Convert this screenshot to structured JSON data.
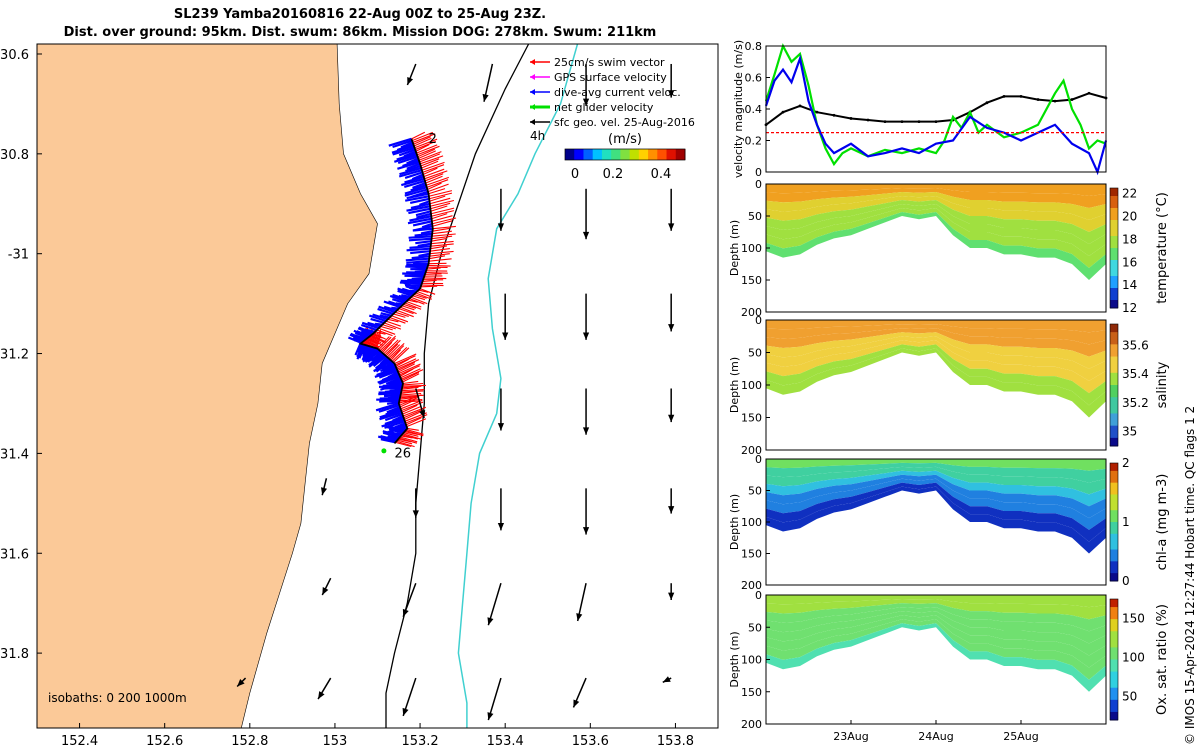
{
  "header": {
    "title_line1": "SL239 Yamba20160816 22-Aug 00Z to 25-Aug 23Z.",
    "title_line2": "Dist. over ground: 95km. Dist. swum: 86km. Mission DOG: 278km. Swum: 211km"
  },
  "credit": "© IMOS 15-Apr-2024 12:27:44 Hobart time. QC flags 1  2",
  "colors": {
    "land": "#fbc998",
    "glider_track": "#0000ff",
    "swim_vectors": "#ff0000",
    "isobath_200": "#000000",
    "isobath_1000": "#40d0d0",
    "black_line": "#000000",
    "green_line": "#00e000",
    "blue_line": "#0000ee",
    "red_dash": "#ff0000"
  },
  "chart_data": [
    {
      "type": "map",
      "id": "glider-map",
      "xlim": [
        152.3,
        153.9
      ],
      "ylim": [
        -31.95,
        -30.58
      ],
      "x_ticks": [
        152.4,
        152.6,
        152.8,
        153,
        153.2,
        153.4,
        153.6,
        153.8
      ],
      "x_tick_labels": [
        "152.4",
        "152.6",
        "152.8",
        "153",
        "153.2",
        "153.4",
        "153.6",
        "153.8"
      ],
      "y_ticks": [
        -30.6,
        -30.8,
        -31,
        -31.2,
        -31.4,
        -31.6,
        -31.8
      ],
      "y_tick_labels": [
        "30.6",
        "30.8",
        "-31",
        "31.2",
        "31.4",
        "31.6",
        "31.8"
      ],
      "legend": {
        "entries": [
          {
            "label": "25cm/s swim vector",
            "color": "#ff0000"
          },
          {
            "label": "GPS surface velocity",
            "color": "#ff00ff"
          },
          {
            "label": "dive-avg current veloc.",
            "color": "#0000ff"
          },
          {
            "label": "net glider velocity",
            "color": "#00e000"
          },
          {
            "label": "sfc geo. vel. 25-Aug-2016",
            "color": "#000000"
          }
        ],
        "scale_label": "4h",
        "colorbar_title": "(m/s)",
        "colorbar_ticks": [
          "0",
          "0.2",
          "0.4"
        ],
        "colorbar_range": [
          0,
          0.5
        ]
      },
      "annotations": [
        {
          "text": "2",
          "lon": 153.22,
          "lat": -30.77
        },
        {
          "text": "26",
          "lon": 153.14,
          "lat": -31.4
        }
      ],
      "isobath_label": "isobaths: 0   200  1000m",
      "coastline": [
        [
          152.3,
          -30.58
        ],
        [
          153.005,
          -30.58
        ],
        [
          153.01,
          -30.7
        ],
        [
          153.02,
          -30.8
        ],
        [
          153.06,
          -30.88
        ],
        [
          153.1,
          -30.94
        ],
        [
          153.08,
          -31.04
        ],
        [
          153.03,
          -31.1
        ],
        [
          153.0,
          -31.16
        ],
        [
          152.97,
          -31.22
        ],
        [
          152.96,
          -31.3
        ],
        [
          152.94,
          -31.38
        ],
        [
          152.93,
          -31.46
        ],
        [
          152.92,
          -31.54
        ],
        [
          152.9,
          -31.6
        ],
        [
          152.87,
          -31.68
        ],
        [
          152.84,
          -31.76
        ],
        [
          152.82,
          -31.82
        ],
        [
          152.8,
          -31.88
        ],
        [
          152.78,
          -31.95
        ],
        [
          152.3,
          -31.95
        ]
      ],
      "isobath_200": [
        [
          153.455,
          -30.58
        ],
        [
          153.4,
          -30.67
        ],
        [
          153.33,
          -30.8
        ],
        [
          153.29,
          -30.9
        ],
        [
          153.25,
          -31.0
        ],
        [
          153.22,
          -31.1
        ],
        [
          153.21,
          -31.2
        ],
        [
          153.21,
          -31.3
        ],
        [
          153.2,
          -31.4
        ],
        [
          153.19,
          -31.5
        ],
        [
          153.19,
          -31.6
        ],
        [
          153.17,
          -31.7
        ],
        [
          153.14,
          -31.8
        ],
        [
          153.12,
          -31.88
        ],
        [
          153.12,
          -31.95
        ]
      ],
      "isobath_1000": [
        [
          153.57,
          -30.58
        ],
        [
          153.53,
          -30.7
        ],
        [
          153.47,
          -30.8
        ],
        [
          153.43,
          -30.88
        ],
        [
          153.38,
          -30.95
        ],
        [
          153.36,
          -31.05
        ],
        [
          153.37,
          -31.15
        ],
        [
          153.39,
          -31.25
        ],
        [
          153.38,
          -31.32
        ],
        [
          153.34,
          -31.4
        ],
        [
          153.32,
          -31.5
        ],
        [
          153.31,
          -31.6
        ],
        [
          153.3,
          -31.7
        ],
        [
          153.29,
          -31.8
        ],
        [
          153.31,
          -31.9
        ],
        [
          153.31,
          -31.95
        ]
      ],
      "glider_track": [
        [
          153.18,
          -30.77
        ],
        [
          153.2,
          -30.82
        ],
        [
          153.22,
          -30.88
        ],
        [
          153.23,
          -30.95
        ],
        [
          153.22,
          -31.02
        ],
        [
          153.2,
          -31.07
        ],
        [
          153.15,
          -31.11
        ],
        [
          153.09,
          -31.16
        ],
        [
          153.06,
          -31.18
        ],
        [
          153.1,
          -31.19
        ],
        [
          153.14,
          -31.22
        ],
        [
          153.16,
          -31.26
        ],
        [
          153.15,
          -31.3
        ],
        [
          153.17,
          -31.35
        ],
        [
          153.14,
          -31.38
        ]
      ],
      "velocity_arrows": [
        {
          "lon": 153.19,
          "lat": -30.62,
          "u": -0.02,
          "v": -0.05
        },
        {
          "lon": 153.37,
          "lat": -30.62,
          "u": -0.02,
          "v": -0.09
        },
        {
          "lon": 153.59,
          "lat": -30.62,
          "u": 0.0,
          "v": -0.1
        },
        {
          "lon": 153.79,
          "lat": -30.62,
          "u": 0.0,
          "v": -0.08
        },
        {
          "lon": 153.39,
          "lat": -30.87,
          "u": 0.0,
          "v": -0.1
        },
        {
          "lon": 153.59,
          "lat": -30.87,
          "u": 0.0,
          "v": -0.12
        },
        {
          "lon": 153.79,
          "lat": -30.87,
          "u": 0.0,
          "v": -0.1
        },
        {
          "lon": 153.4,
          "lat": -31.08,
          "u": 0.0,
          "v": -0.11
        },
        {
          "lon": 153.59,
          "lat": -31.08,
          "u": 0.0,
          "v": -0.11
        },
        {
          "lon": 153.79,
          "lat": -31.08,
          "u": 0.0,
          "v": -0.09
        },
        {
          "lon": 153.19,
          "lat": -31.27,
          "u": 0.02,
          "v": -0.07
        },
        {
          "lon": 153.39,
          "lat": -31.27,
          "u": 0.0,
          "v": -0.1
        },
        {
          "lon": 153.59,
          "lat": -31.27,
          "u": 0.0,
          "v": -0.11
        },
        {
          "lon": 153.79,
          "lat": -31.27,
          "u": 0.0,
          "v": -0.08
        },
        {
          "lon": 152.98,
          "lat": -31.45,
          "u": -0.01,
          "v": -0.04
        },
        {
          "lon": 153.19,
          "lat": -31.47,
          "u": 0.0,
          "v": -0.07
        },
        {
          "lon": 153.39,
          "lat": -31.47,
          "u": 0.0,
          "v": -0.1
        },
        {
          "lon": 153.59,
          "lat": -31.47,
          "u": 0.0,
          "v": -0.11
        },
        {
          "lon": 153.79,
          "lat": -31.47,
          "u": 0.0,
          "v": -0.06
        },
        {
          "lon": 152.99,
          "lat": -31.65,
          "u": -0.02,
          "v": -0.04
        },
        {
          "lon": 153.19,
          "lat": -31.66,
          "u": -0.03,
          "v": -0.08
        },
        {
          "lon": 153.39,
          "lat": -31.66,
          "u": -0.03,
          "v": -0.1
        },
        {
          "lon": 153.59,
          "lat": -31.66,
          "u": -0.02,
          "v": -0.09
        },
        {
          "lon": 153.79,
          "lat": -31.66,
          "u": 0.0,
          "v": -0.04
        },
        {
          "lon": 152.79,
          "lat": -31.85,
          "u": -0.02,
          "v": -0.02
        },
        {
          "lon": 152.99,
          "lat": -31.85,
          "u": -0.03,
          "v": -0.05
        },
        {
          "lon": 153.19,
          "lat": -31.85,
          "u": -0.03,
          "v": -0.09
        },
        {
          "lon": 153.39,
          "lat": -31.85,
          "u": -0.03,
          "v": -0.1
        },
        {
          "lon": 153.59,
          "lat": -31.85,
          "u": -0.03,
          "v": -0.07
        },
        {
          "lon": 153.79,
          "lat": -31.85,
          "u": -0.02,
          "v": -0.01
        }
      ]
    },
    {
      "type": "line",
      "id": "velocity-panel",
      "ylabel": "velocity magnitude (m/s)",
      "ylim": [
        0,
        0.8
      ],
      "y_ticks": [
        0,
        0.2,
        0.4,
        0.6,
        0.8
      ],
      "y_tick_labels": [
        "0",
        "0.2",
        "0.4",
        "0.6",
        "0.8"
      ],
      "x_range_days": [
        22.0,
        26.0
      ],
      "series": [
        {
          "color": "#000000",
          "x": [
            22.0,
            22.2,
            22.4,
            22.6,
            22.8,
            23.0,
            23.2,
            23.4,
            23.6,
            23.8,
            24.0,
            24.2,
            24.4,
            24.6,
            24.8,
            25.0,
            25.2,
            25.4,
            25.6,
            25.8,
            26.0
          ],
          "y": [
            0.3,
            0.38,
            0.42,
            0.38,
            0.36,
            0.34,
            0.33,
            0.32,
            0.32,
            0.32,
            0.32,
            0.33,
            0.38,
            0.44,
            0.48,
            0.48,
            0.46,
            0.45,
            0.46,
            0.5,
            0.47
          ]
        },
        {
          "color": "#00e000",
          "x": [
            22.0,
            22.1,
            22.2,
            22.3,
            22.4,
            22.5,
            22.6,
            22.7,
            22.8,
            22.9,
            23.0,
            23.2,
            23.4,
            23.6,
            23.8,
            24.0,
            24.1,
            24.2,
            24.3,
            24.4,
            24.5,
            24.6,
            24.8,
            25.0,
            25.2,
            25.4,
            25.5,
            25.6,
            25.7,
            25.8,
            25.9,
            26.0
          ],
          "y": [
            0.45,
            0.62,
            0.8,
            0.7,
            0.75,
            0.55,
            0.3,
            0.15,
            0.05,
            0.12,
            0.15,
            0.1,
            0.14,
            0.12,
            0.15,
            0.12,
            0.2,
            0.35,
            0.28,
            0.38,
            0.25,
            0.3,
            0.22,
            0.25,
            0.3,
            0.5,
            0.58,
            0.4,
            0.3,
            0.15,
            0.2,
            0.18
          ]
        },
        {
          "color": "#0000ee",
          "x": [
            22.0,
            22.1,
            22.2,
            22.3,
            22.4,
            22.5,
            22.6,
            22.7,
            22.8,
            22.9,
            23.0,
            23.2,
            23.4,
            23.6,
            23.8,
            24.0,
            24.2,
            24.4,
            24.6,
            24.8,
            25.0,
            25.2,
            25.4,
            25.6,
            25.8,
            25.9,
            26.0
          ],
          "y": [
            0.42,
            0.58,
            0.65,
            0.57,
            0.72,
            0.45,
            0.3,
            0.18,
            0.12,
            0.15,
            0.18,
            0.1,
            0.12,
            0.15,
            0.12,
            0.18,
            0.2,
            0.35,
            0.28,
            0.25,
            0.2,
            0.25,
            0.3,
            0.18,
            0.12,
            0.0,
            0.2
          ]
        },
        {
          "color": "#ff0000",
          "dashed": true,
          "x": [
            22.0,
            26.0
          ],
          "y": [
            0.25,
            0.25
          ]
        }
      ]
    },
    {
      "type": "heatmap",
      "id": "temperature-panel",
      "ylabel": "Depth (m)",
      "y_tick_labels": [
        "0",
        "50",
        "100",
        "150",
        "200"
      ],
      "ylim": [
        0,
        200
      ],
      "colorbar_label": "temperature (°C)",
      "colorbar_ticks": [
        "12",
        "14",
        "16",
        "18",
        "20",
        "22"
      ],
      "colorbar_range": [
        12,
        22.5
      ],
      "surface_value": 20.5,
      "deep_value": 16.5
    },
    {
      "type": "heatmap",
      "id": "salinity-panel",
      "ylabel": "Depth (m)",
      "y_tick_labels": [
        "0",
        "50",
        "100",
        "150",
        "200"
      ],
      "ylim": [
        0,
        200
      ],
      "colorbar_label": "salinity",
      "colorbar_ticks": [
        "35",
        "35.2",
        "35.4",
        "35.6"
      ],
      "colorbar_range": [
        34.9,
        35.75
      ],
      "surface_value": 35.58,
      "deep_value": 35.38
    },
    {
      "type": "heatmap",
      "id": "chla-panel",
      "ylabel": "Depth (m)",
      "y_tick_labels": [
        "0",
        "50",
        "100",
        "150",
        "200"
      ],
      "ylim": [
        0,
        200
      ],
      "colorbar_label": "chl-a (mg m-3)",
      "colorbar_ticks": [
        "0",
        "1",
        "2"
      ],
      "colorbar_range": [
        0,
        2
      ],
      "surface_value": 1.2,
      "deep_value": 0.05
    },
    {
      "type": "heatmap",
      "id": "oxygen-panel",
      "ylabel": "Depth (m)",
      "y_tick_labels": [
        "0",
        "50",
        "100",
        "150",
        "200"
      ],
      "ylim": [
        0,
        200
      ],
      "x_tick_labels": [
        "23Aug",
        "24Aug",
        "25Aug"
      ],
      "colorbar_label": "Ox. sat. ratio (%)",
      "colorbar_ticks": [
        "50",
        "100",
        "150"
      ],
      "colorbar_range": [
        20,
        175
      ],
      "surface_value": 120,
      "deep_value": 95
    }
  ],
  "profile_bottom_days": [
    22.0,
    22.2,
    22.4,
    22.6,
    22.8,
    23.0,
    23.2,
    23.4,
    23.6,
    23.8,
    24.0,
    24.2,
    24.4,
    24.6,
    24.8,
    25.0,
    25.2,
    25.4,
    25.6,
    25.8,
    26.0
  ],
  "profile_bottom_depth": [
    105,
    115,
    110,
    95,
    85,
    80,
    70,
    60,
    50,
    55,
    50,
    80,
    100,
    100,
    110,
    110,
    115,
    115,
    125,
    150,
    125
  ]
}
